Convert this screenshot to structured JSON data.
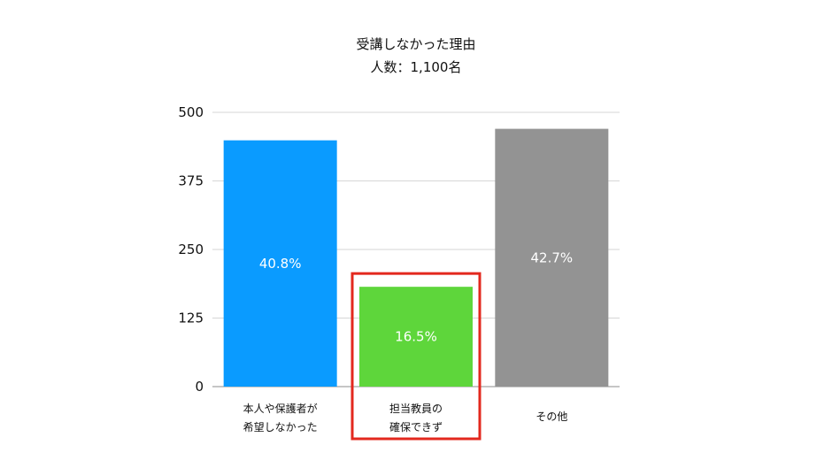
{
  "chart_data": {
    "type": "bar",
    "title": "受講しなかった理由",
    "subtitle": "人数：1,100名",
    "categories": [
      [
        "本人や保護者が",
        "希望しなかった"
      ],
      [
        "担当教員の",
        "確保できず"
      ],
      [
        "その他"
      ]
    ],
    "values": [
      449,
      182,
      470
    ],
    "data_labels": [
      "40.8%",
      "16.5%",
      "42.7%"
    ],
    "bar_colors": [
      "#0A9BFF",
      "#5ED63B",
      "#939393"
    ],
    "ylim": [
      0,
      500
    ],
    "yticks": [
      0,
      125,
      250,
      375,
      500
    ],
    "ytick_labels": [
      "0",
      "125",
      "250",
      "375",
      "500"
    ],
    "grid": true,
    "legend": "none",
    "highlight": {
      "category_index": 1,
      "color": "#E3281E"
    }
  }
}
